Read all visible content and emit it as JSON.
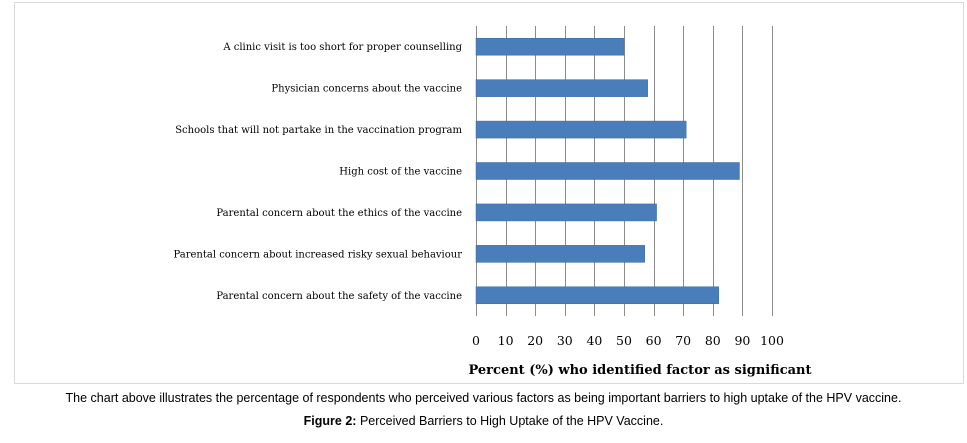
{
  "chart_data": {
    "type": "bar",
    "orientation": "horizontal",
    "categories": [
      "A clinic visit is too short for proper counselling",
      "Physician concerns about the vaccine",
      "Schools that will not partake in the vaccination program",
      "High cost of the vaccine",
      "Parental concern about the ethics of the vaccine",
      "Parental concern about increased risky sexual behaviour",
      "Parental concern about the safety of the vaccine"
    ],
    "values": [
      50,
      58,
      71,
      89,
      61,
      57,
      82
    ],
    "xlabel": "Percent (%) who identified factor as significant",
    "ylabel": "",
    "xlim": [
      0,
      100
    ],
    "xticks": [
      "0",
      "10",
      "20",
      "30",
      "40",
      "50",
      "60",
      "70",
      "80",
      "90",
      "100"
    ],
    "grid": "vertical",
    "bar_color": "#4a7ebb"
  },
  "caption": {
    "text": "The chart above illustrates the percentage of respondents who perceived various factors as being important barriers to high uptake of the HPV vaccine.",
    "figure_label": "Figure 2:",
    "figure_title": "Perceived Barriers to High Uptake of the HPV Vaccine."
  }
}
